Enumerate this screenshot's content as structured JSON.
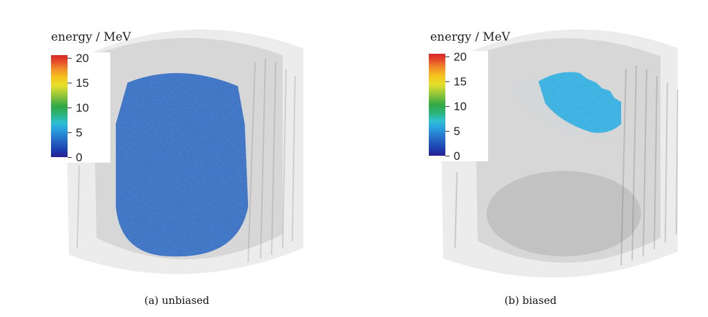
{
  "colorbar": {
    "title": "energy / MeV",
    "ticks": [
      "20",
      "15",
      "10",
      "5",
      "0"
    ]
  },
  "panels": [
    {
      "caption": "(a) unbiased",
      "particle_color": "#2f62b8"
    },
    {
      "caption": "(b) biased",
      "particle_color": "#2aa7dc"
    }
  ]
}
